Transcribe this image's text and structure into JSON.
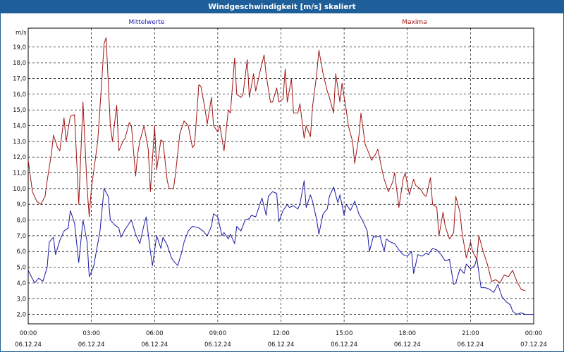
{
  "window": {
    "title": "Windgeschwindigkeit [m/s] skaliert"
  },
  "colors": {
    "title_bar": "#1f5f99",
    "mean": "#1a1aa6",
    "max": "#a01414",
    "grid": "#000000"
  },
  "chart_data": {
    "type": "line",
    "title": "Windgeschwindigkeit [m/s] skaliert",
    "ylabel": "m/s",
    "ylim": [
      1.4,
      20.2
    ],
    "xlim": [
      0,
      24
    ],
    "grid": true,
    "legend_placement": "top",
    "y_ticks": [
      "2,0",
      "3,0",
      "4,0",
      "5,0",
      "6,0",
      "7,0",
      "8,0",
      "9,0",
      "10,0",
      "11,0",
      "12,0",
      "13,0",
      "14,0",
      "15,0",
      "16,0",
      "17,0",
      "18,0",
      "19,0"
    ],
    "x_ticks": [
      {
        "time": "00:00",
        "date": "06.12.24"
      },
      {
        "time": "03:00",
        "date": "06.12.24"
      },
      {
        "time": "06:00",
        "date": "06.12.24"
      },
      {
        "time": "09:00",
        "date": "06.12.24"
      },
      {
        "time": "12:00",
        "date": "06.12.24"
      },
      {
        "time": "15:00",
        "date": "06.12.24"
      },
      {
        "time": "18:00",
        "date": "06.12.24"
      },
      {
        "time": "21:00",
        "date": "06.12.24"
      },
      {
        "time": "00:00",
        "date": "07.12.24"
      }
    ],
    "series": [
      {
        "name": "Mittelwerte",
        "color": "#1a1aa6",
        "points": [
          [
            0.0,
            4.8
          ],
          [
            0.3,
            4.0
          ],
          [
            0.5,
            4.3
          ],
          [
            0.7,
            4.1
          ],
          [
            0.9,
            5.0
          ],
          [
            1.0,
            6.6
          ],
          [
            1.2,
            6.9
          ],
          [
            1.3,
            5.8
          ],
          [
            1.5,
            6.7
          ],
          [
            1.7,
            7.3
          ],
          [
            1.9,
            7.5
          ],
          [
            2.0,
            8.6
          ],
          [
            2.2,
            7.8
          ],
          [
            2.4,
            5.3
          ],
          [
            2.6,
            8.0
          ],
          [
            2.8,
            6.6
          ],
          [
            2.9,
            4.4
          ],
          [
            3.1,
            5.0
          ],
          [
            3.3,
            6.5
          ],
          [
            3.4,
            7.2
          ],
          [
            3.6,
            10.0
          ],
          [
            3.8,
            9.5
          ],
          [
            3.9,
            8.0
          ],
          [
            4.1,
            7.7
          ],
          [
            4.3,
            7.5
          ],
          [
            4.4,
            6.9
          ],
          [
            4.6,
            7.4
          ],
          [
            4.8,
            7.8
          ],
          [
            4.9,
            8.0
          ],
          [
            5.1,
            7.1
          ],
          [
            5.3,
            6.5
          ],
          [
            5.5,
            7.7
          ],
          [
            5.6,
            8.2
          ],
          [
            5.8,
            6.0
          ],
          [
            5.9,
            5.1
          ],
          [
            6.1,
            7.0
          ],
          [
            6.3,
            6.2
          ],
          [
            6.4,
            6.9
          ],
          [
            6.6,
            6.4
          ],
          [
            6.8,
            5.6
          ],
          [
            6.9,
            5.4
          ],
          [
            7.1,
            5.1
          ],
          [
            7.3,
            6.0
          ],
          [
            7.4,
            6.6
          ],
          [
            7.6,
            7.3
          ],
          [
            7.8,
            7.6
          ],
          [
            8.1,
            7.5
          ],
          [
            8.3,
            7.3
          ],
          [
            8.5,
            7.0
          ],
          [
            8.7,
            7.6
          ],
          [
            8.8,
            8.4
          ],
          [
            9.0,
            8.2
          ],
          [
            9.2,
            7.0
          ],
          [
            9.3,
            7.2
          ],
          [
            9.5,
            6.8
          ],
          [
            9.6,
            7.1
          ],
          [
            9.8,
            6.5
          ],
          [
            9.9,
            7.6
          ],
          [
            10.1,
            7.3
          ],
          [
            10.3,
            8.0
          ],
          [
            10.5,
            8.1
          ],
          [
            10.6,
            8.3
          ],
          [
            10.8,
            8.2
          ],
          [
            11.0,
            9.0
          ],
          [
            11.1,
            9.4
          ],
          [
            11.3,
            8.3
          ],
          [
            11.4,
            9.5
          ],
          [
            11.6,
            9.8
          ],
          [
            11.8,
            9.7
          ],
          [
            11.9,
            7.9
          ],
          [
            12.1,
            8.6
          ],
          [
            12.3,
            9.0
          ],
          [
            12.4,
            8.8
          ],
          [
            12.6,
            8.9
          ],
          [
            12.8,
            8.7
          ],
          [
            12.9,
            9.0
          ],
          [
            13.1,
            10.5
          ],
          [
            13.2,
            8.8
          ],
          [
            13.4,
            9.6
          ],
          [
            13.5,
            9.2
          ],
          [
            13.7,
            8.0
          ],
          [
            13.8,
            7.1
          ],
          [
            14.0,
            8.4
          ],
          [
            14.2,
            8.7
          ],
          [
            14.3,
            9.5
          ],
          [
            14.5,
            10.1
          ],
          [
            14.7,
            9.1
          ],
          [
            14.8,
            9.6
          ],
          [
            15.0,
            8.3
          ],
          [
            15.1,
            9.0
          ],
          [
            15.3,
            8.6
          ],
          [
            15.5,
            9.2
          ],
          [
            15.7,
            8.4
          ],
          [
            15.9,
            7.9
          ],
          [
            16.1,
            7.3
          ],
          [
            16.2,
            6.0
          ],
          [
            16.4,
            7.0
          ],
          [
            16.5,
            6.9
          ],
          [
            16.7,
            7.0
          ],
          [
            16.9,
            6.0
          ],
          [
            17.0,
            6.8
          ],
          [
            17.2,
            6.6
          ],
          [
            17.4,
            6.5
          ],
          [
            17.6,
            6.1
          ],
          [
            17.8,
            5.8
          ],
          [
            18.0,
            5.7
          ],
          [
            18.2,
            6.0
          ],
          [
            18.3,
            4.6
          ],
          [
            18.5,
            5.8
          ],
          [
            18.7,
            5.7
          ],
          [
            18.9,
            5.9
          ],
          [
            19.0,
            5.8
          ],
          [
            19.2,
            6.2
          ],
          [
            19.4,
            6.1
          ],
          [
            19.6,
            5.8
          ],
          [
            19.8,
            5.4
          ],
          [
            20.0,
            5.5
          ],
          [
            20.2,
            3.9
          ],
          [
            20.3,
            4.0
          ],
          [
            20.5,
            4.9
          ],
          [
            20.7,
            4.6
          ],
          [
            20.8,
            5.2
          ],
          [
            21.0,
            4.9
          ],
          [
            21.2,
            5.1
          ],
          [
            21.3,
            5.6
          ],
          [
            21.5,
            3.7
          ],
          [
            21.7,
            3.7
          ],
          [
            21.9,
            3.6
          ],
          [
            22.1,
            3.4
          ],
          [
            22.3,
            3.9
          ],
          [
            22.5,
            3.1
          ],
          [
            22.7,
            2.8
          ],
          [
            22.9,
            2.6
          ],
          [
            23.0,
            2.2
          ],
          [
            23.2,
            2.0
          ],
          [
            23.4,
            2.1
          ],
          [
            23.6,
            2.0
          ],
          [
            23.8,
            2.0
          ],
          [
            24.0,
            2.0
          ]
        ]
      },
      {
        "name": "Maxima",
        "color": "#a01414",
        "points": [
          [
            0.0,
            11.8
          ],
          [
            0.2,
            9.8
          ],
          [
            0.4,
            9.2
          ],
          [
            0.6,
            9.0
          ],
          [
            0.8,
            9.5
          ],
          [
            0.9,
            10.5
          ],
          [
            1.1,
            12.2
          ],
          [
            1.2,
            13.4
          ],
          [
            1.4,
            12.6
          ],
          [
            1.5,
            12.4
          ],
          [
            1.7,
            14.5
          ],
          [
            1.8,
            13.0
          ],
          [
            2.0,
            14.6
          ],
          [
            2.2,
            14.7
          ],
          [
            2.4,
            9.0
          ],
          [
            2.6,
            15.5
          ],
          [
            2.8,
            10.0
          ],
          [
            2.9,
            8.2
          ],
          [
            3.0,
            10.0
          ],
          [
            3.2,
            12.0
          ],
          [
            3.3,
            13.0
          ],
          [
            3.5,
            17.0
          ],
          [
            3.6,
            19.2
          ],
          [
            3.7,
            19.6
          ],
          [
            3.9,
            14.0
          ],
          [
            4.0,
            13.0
          ],
          [
            4.2,
            15.3
          ],
          [
            4.3,
            12.4
          ],
          [
            4.5,
            13.0
          ],
          [
            4.6,
            13.2
          ],
          [
            4.8,
            14.2
          ],
          [
            4.9,
            14.0
          ],
          [
            5.1,
            10.8
          ],
          [
            5.2,
            12.2
          ],
          [
            5.3,
            13.0
          ],
          [
            5.5,
            14.0
          ],
          [
            5.7,
            12.5
          ],
          [
            5.8,
            9.8
          ],
          [
            6.0,
            14.0
          ],
          [
            6.1,
            11.2
          ],
          [
            6.3,
            13.1
          ],
          [
            6.4,
            13.0
          ],
          [
            6.6,
            10.5
          ],
          [
            6.7,
            10.0
          ],
          [
            6.9,
            10.0
          ],
          [
            7.0,
            11.0
          ],
          [
            7.2,
            13.5
          ],
          [
            7.4,
            14.3
          ],
          [
            7.6,
            14.0
          ],
          [
            7.8,
            12.6
          ],
          [
            7.9,
            12.8
          ],
          [
            8.1,
            16.6
          ],
          [
            8.2,
            16.5
          ],
          [
            8.4,
            15.0
          ],
          [
            8.5,
            14.1
          ],
          [
            8.7,
            15.8
          ],
          [
            8.8,
            14.0
          ],
          [
            9.0,
            13.6
          ],
          [
            9.1,
            14.0
          ],
          [
            9.3,
            12.4
          ],
          [
            9.5,
            15.0
          ],
          [
            9.6,
            14.8
          ],
          [
            9.8,
            18.3
          ],
          [
            9.9,
            16.0
          ],
          [
            10.1,
            15.8
          ],
          [
            10.2,
            16.0
          ],
          [
            10.4,
            18.2
          ],
          [
            10.5,
            15.8
          ],
          [
            10.7,
            17.3
          ],
          [
            10.8,
            16.2
          ],
          [
            11.0,
            17.4
          ],
          [
            11.2,
            18.5
          ],
          [
            11.3,
            17.2
          ],
          [
            11.5,
            15.5
          ],
          [
            11.6,
            15.5
          ],
          [
            11.8,
            16.4
          ],
          [
            11.9,
            15.5
          ],
          [
            12.1,
            15.7
          ],
          [
            12.2,
            17.6
          ],
          [
            12.3,
            15.5
          ],
          [
            12.5,
            17.0
          ],
          [
            12.6,
            14.8
          ],
          [
            12.8,
            14.8
          ],
          [
            12.9,
            15.4
          ],
          [
            13.1,
            13.2
          ],
          [
            13.2,
            14.0
          ],
          [
            13.4,
            13.3
          ],
          [
            13.5,
            15.2
          ],
          [
            13.7,
            17.3
          ],
          [
            13.8,
            18.8
          ],
          [
            14.0,
            17.3
          ],
          [
            14.2,
            16.2
          ],
          [
            14.3,
            15.8
          ],
          [
            14.5,
            14.8
          ],
          [
            14.6,
            17.3
          ],
          [
            14.8,
            15.5
          ],
          [
            14.9,
            16.7
          ],
          [
            15.1,
            15.0
          ],
          [
            15.2,
            14.0
          ],
          [
            15.4,
            13.0
          ],
          [
            15.5,
            11.6
          ],
          [
            15.7,
            13.3
          ],
          [
            15.8,
            14.8
          ],
          [
            16.0,
            12.8
          ],
          [
            16.1,
            12.5
          ],
          [
            16.3,
            11.8
          ],
          [
            16.5,
            12.2
          ],
          [
            16.6,
            12.5
          ],
          [
            16.8,
            11.2
          ],
          [
            16.9,
            10.6
          ],
          [
            17.1,
            9.8
          ],
          [
            17.3,
            10.4
          ],
          [
            17.4,
            11.0
          ],
          [
            17.6,
            8.8
          ],
          [
            17.8,
            10.6
          ],
          [
            17.9,
            11.0
          ],
          [
            18.1,
            9.6
          ],
          [
            18.3,
            10.6
          ],
          [
            18.4,
            10.2
          ],
          [
            18.6,
            10.0
          ],
          [
            18.8,
            9.6
          ],
          [
            18.9,
            9.5
          ],
          [
            19.1,
            10.7
          ],
          [
            19.2,
            9.0
          ],
          [
            19.4,
            8.8
          ],
          [
            19.5,
            7.0
          ],
          [
            19.7,
            8.5
          ],
          [
            19.8,
            7.6
          ],
          [
            20.0,
            6.8
          ],
          [
            20.2,
            7.2
          ],
          [
            20.3,
            9.5
          ],
          [
            20.5,
            8.5
          ],
          [
            20.6,
            7.2
          ],
          [
            20.8,
            5.6
          ],
          [
            21.0,
            6.6
          ],
          [
            21.1,
            6.0
          ],
          [
            21.3,
            5.5
          ],
          [
            21.4,
            7.0
          ],
          [
            21.6,
            6.0
          ],
          [
            21.8,
            5.2
          ],
          [
            22.0,
            4.1
          ],
          [
            22.2,
            4.2
          ],
          [
            22.4,
            4.0
          ],
          [
            22.6,
            4.5
          ],
          [
            22.8,
            4.4
          ],
          [
            23.0,
            4.8
          ],
          [
            23.2,
            4.1
          ],
          [
            23.4,
            3.6
          ],
          [
            23.6,
            3.5
          ]
        ]
      }
    ]
  }
}
